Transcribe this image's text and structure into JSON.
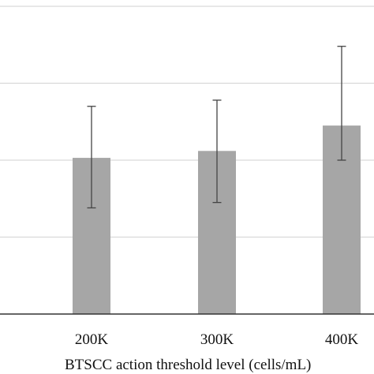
{
  "chart_data": {
    "type": "bar",
    "categories": [
      "200K",
      "300K",
      "400K"
    ],
    "values": [
      2.03,
      2.12,
      2.45
    ],
    "error_low": [
      1.38,
      1.45,
      2.0
    ],
    "error_high": [
      2.7,
      2.78,
      3.48
    ],
    "title": "",
    "xlabel": "BTSCC action threshold level (cells/mL)",
    "ylabel": "",
    "ylim": [
      0,
      4
    ],
    "grid": true,
    "colors": {
      "bar": "#a6a6a6",
      "gridline": "#d9d9d9",
      "axis": "#333333",
      "error_bar": "#444444"
    }
  }
}
